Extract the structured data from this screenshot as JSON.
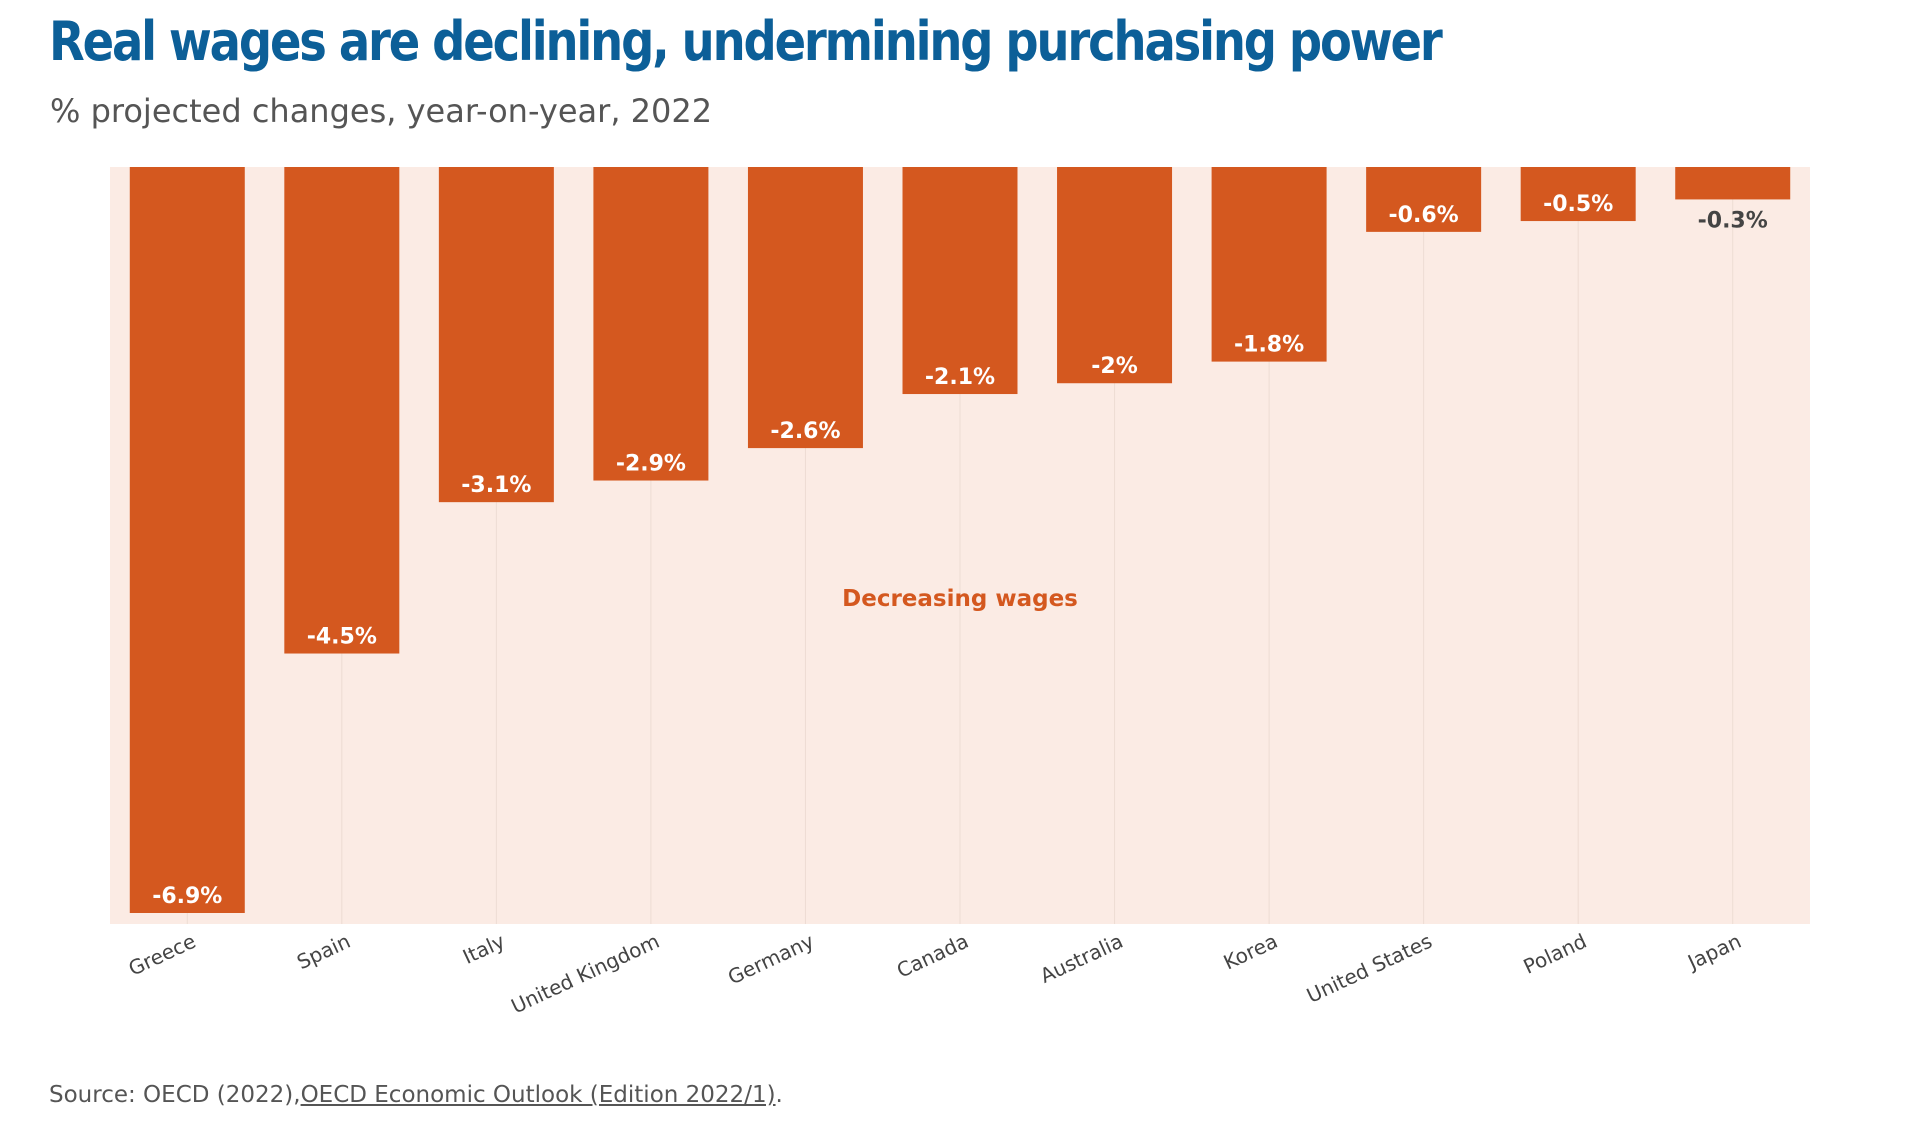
{
  "header": {
    "title": "Real wages are declining, undermining purchasing power",
    "subtitle": "% projected changes, year-on-year, 2022"
  },
  "footer": {
    "source_prefix": "Source: OECD (2022),",
    "source_link": "OECD Economic Outlook (Edition 2022/1)",
    "source_suffix": "."
  },
  "colors": {
    "bar": "#d4581f",
    "panel": "#fbebe4",
    "title": "#0c5f98",
    "label_inside": "#ffffff",
    "label_outside": "#444444",
    "annotation": "#d4581f"
  },
  "chart_data": {
    "type": "bar",
    "categories": [
      "Greece",
      "Spain",
      "Italy",
      "United Kingdom",
      "Germany",
      "Canada",
      "Australia",
      "Korea",
      "United States",
      "Poland",
      "Japan"
    ],
    "values": [
      -6.9,
      -4.5,
      -3.1,
      -2.9,
      -2.6,
      -2.1,
      -2.0,
      -1.8,
      -0.6,
      -0.5,
      -0.3
    ],
    "value_labels": [
      "-6.9%",
      "-4.5%",
      "-3.1%",
      "-2.9%",
      "-2.6%",
      "-2.1%",
      "-2%",
      "-1.8%",
      "-0.6%",
      "-0.5%",
      "-0.3%"
    ],
    "title": "Real wages are declining, undermining purchasing power",
    "subtitle": "% projected changes, year-on-year, 2022",
    "xlabel": "",
    "ylabel": "",
    "ylim": [
      -7.0,
      0
    ],
    "grid": true,
    "annotation": "Decreasing wages"
  }
}
